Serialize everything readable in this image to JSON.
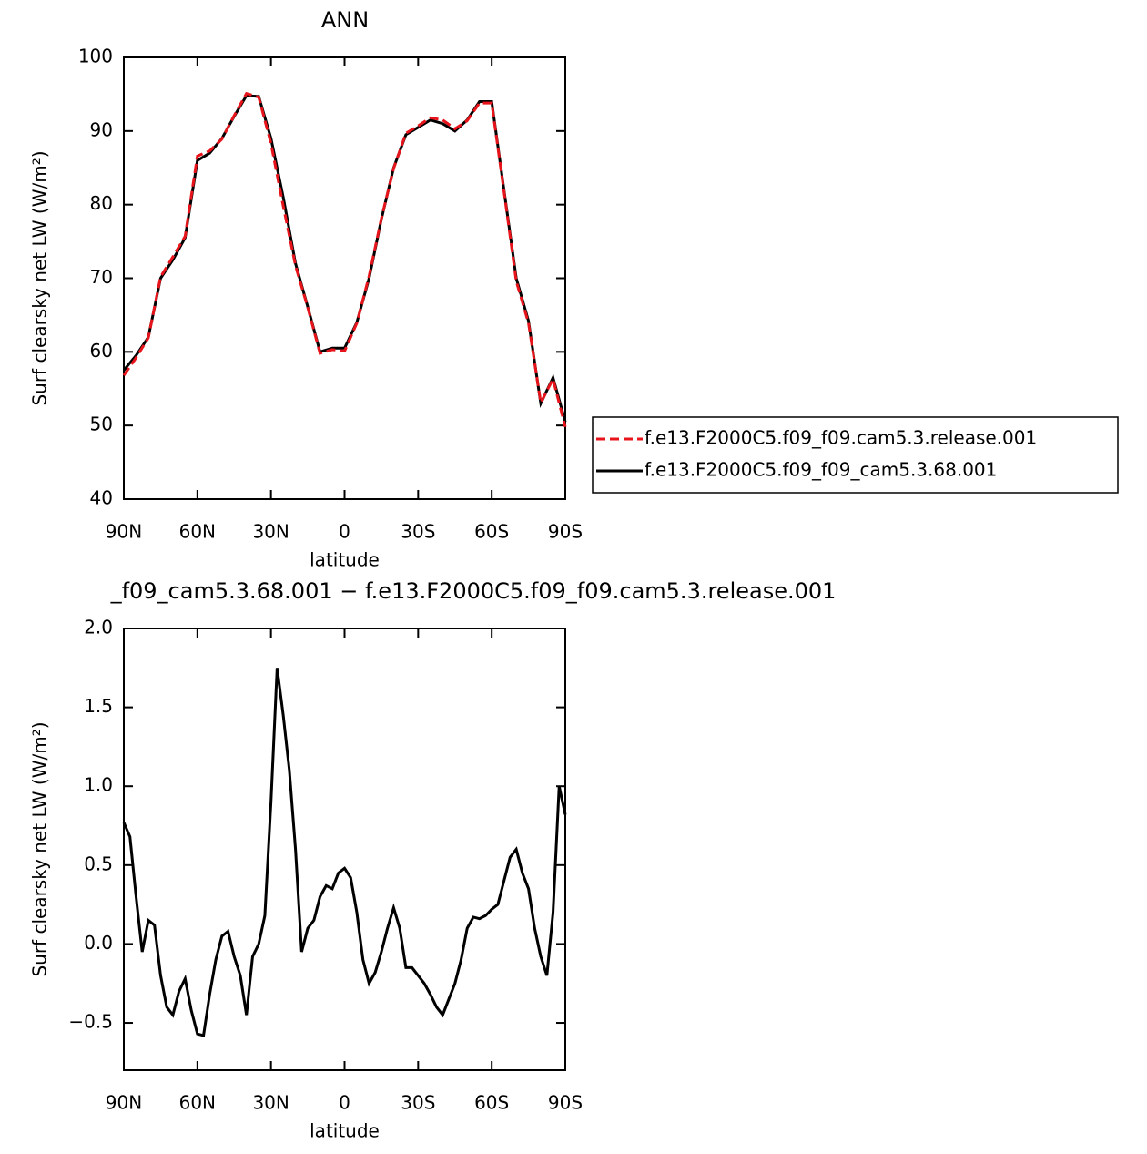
{
  "chart_data": [
    {
      "type": "line",
      "title": "ANN",
      "x_label": "latitude",
      "y_label": "Surf clearsky net LW (W/m²)",
      "x": [
        90,
        85,
        80,
        75,
        70,
        65,
        60,
        55,
        50,
        45,
        40,
        35,
        30,
        25,
        20,
        15,
        10,
        5,
        0,
        -5,
        -10,
        -15,
        -20,
        -25,
        -30,
        -35,
        -40,
        -45,
        -50,
        -55,
        -60,
        -65,
        -70,
        -75,
        -80,
        -85,
        -90
      ],
      "series": [
        {
          "name": "f.e13.F2000C5.f09_f09.cam5.3.release.001",
          "color": "#e8141b",
          "style": "dashed",
          "values": [
            56.8,
            59.2,
            61.9,
            70.2,
            72.9,
            75.7,
            86.6,
            87.3,
            88.9,
            92.1,
            95.1,
            94.6,
            88.3,
            79.8,
            71.7,
            66.0,
            59.8,
            60.3,
            60.1,
            63.9,
            70.3,
            78.1,
            84.9,
            89.7,
            90.7,
            91.8,
            91.5,
            90.3,
            91.4,
            93.8,
            93.8,
            81.8,
            69.6,
            63.9,
            53.1,
            56.3,
            49.8
          ]
        },
        {
          "name": "f.e13.F2000C5.f09_f09_cam5.3.68.001",
          "color": "#000000",
          "style": "solid",
          "values": [
            57.5,
            59.5,
            62.0,
            70.0,
            72.5,
            75.5,
            86.0,
            87.0,
            89.0,
            92.0,
            94.8,
            94.7,
            89.0,
            81.0,
            72.0,
            66.1,
            60.0,
            60.5,
            60.5,
            64.0,
            70.0,
            78.0,
            85.0,
            89.5,
            90.5,
            91.5,
            91.0,
            90.0,
            91.5,
            94.0,
            94.0,
            82.0,
            70.0,
            64.2,
            53.0,
            56.5,
            50.5
          ]
        }
      ],
      "xlim": [
        90,
        -90
      ],
      "xticks": [
        {
          "value": 90,
          "label": "90N"
        },
        {
          "value": 60,
          "label": "60N"
        },
        {
          "value": 30,
          "label": "30N"
        },
        0,
        {
          "value": -30,
          "label": "30S"
        },
        {
          "value": -60,
          "label": "60S"
        },
        {
          "value": -90,
          "label": "90S"
        }
      ],
      "ylim": [
        40,
        100
      ],
      "yticks": [
        40,
        50,
        60,
        70,
        80,
        90,
        100
      ],
      "legend": "right"
    },
    {
      "type": "line",
      "title": "_f09_cam5.3.68.001 − f.e13.F2000C5.f09_f09.cam5.3.release.001",
      "x_label": "latitude",
      "y_label": "Surf clearsky net LW (W/m²)",
      "x": [
        90,
        87.5,
        85,
        82.5,
        80,
        77.5,
        75,
        72.5,
        70,
        67.5,
        65,
        62.5,
        60,
        57.5,
        55,
        52.5,
        50,
        47.5,
        45,
        42.5,
        40,
        37.5,
        35,
        32.5,
        30,
        27.5,
        25,
        22.5,
        20,
        17.5,
        15,
        12.5,
        10,
        7.5,
        5,
        2.5,
        0,
        -2.5,
        -5,
        -7.5,
        -10,
        -12.5,
        -15,
        -17.5,
        -20,
        -22.5,
        -25,
        -27.5,
        -30,
        -32.5,
        -35,
        -37.5,
        -40,
        -42.5,
        -45,
        -47.5,
        -50,
        -52.5,
        -55,
        -57.5,
        -60,
        -62.5,
        -65,
        -67.5,
        -70,
        -72.5,
        -75,
        -77.5,
        -80,
        -82.5,
        -85,
        -87.5,
        -90
      ],
      "values": [
        0.77,
        0.68,
        0.3,
        -0.05,
        0.15,
        0.12,
        -0.2,
        -0.4,
        -0.45,
        -0.3,
        -0.22,
        -0.42,
        -0.57,
        -0.58,
        -0.32,
        -0.1,
        0.05,
        0.08,
        -0.08,
        -0.2,
        -0.45,
        -0.08,
        0.0,
        0.18,
        0.9,
        1.75,
        1.45,
        1.1,
        0.6,
        -0.05,
        0.1,
        0.15,
        0.3,
        0.37,
        0.35,
        0.45,
        0.48,
        0.42,
        0.2,
        -0.1,
        -0.25,
        -0.18,
        -0.05,
        0.1,
        0.23,
        0.1,
        -0.15,
        -0.15,
        -0.2,
        -0.25,
        -0.32,
        -0.4,
        -0.45,
        -0.35,
        -0.25,
        -0.1,
        0.1,
        0.17,
        0.16,
        0.18,
        0.22,
        0.25,
        0.4,
        0.55,
        0.6,
        0.45,
        0.35,
        0.1,
        -0.08,
        -0.2,
        0.2,
        1.0,
        0.82
      ],
      "color": "#000000",
      "xlim": [
        90,
        -90
      ],
      "xticks": [
        {
          "value": 90,
          "label": "90N"
        },
        {
          "value": 60,
          "label": "60N"
        },
        {
          "value": 30,
          "label": "30N"
        },
        0,
        {
          "value": -30,
          "label": "30S"
        },
        {
          "value": -60,
          "label": "60S"
        },
        {
          "value": -90,
          "label": "90S"
        }
      ],
      "ylim": [
        -0.8,
        2.0
      ],
      "yticks": [
        {
          "value": -0.5,
          "label": "−0.5"
        },
        {
          "value": 0,
          "label": "0.0"
        },
        0.5,
        {
          "value": 1,
          "label": "1.0"
        },
        1.5,
        {
          "value": 2,
          "label": "2.0"
        }
      ]
    }
  ]
}
